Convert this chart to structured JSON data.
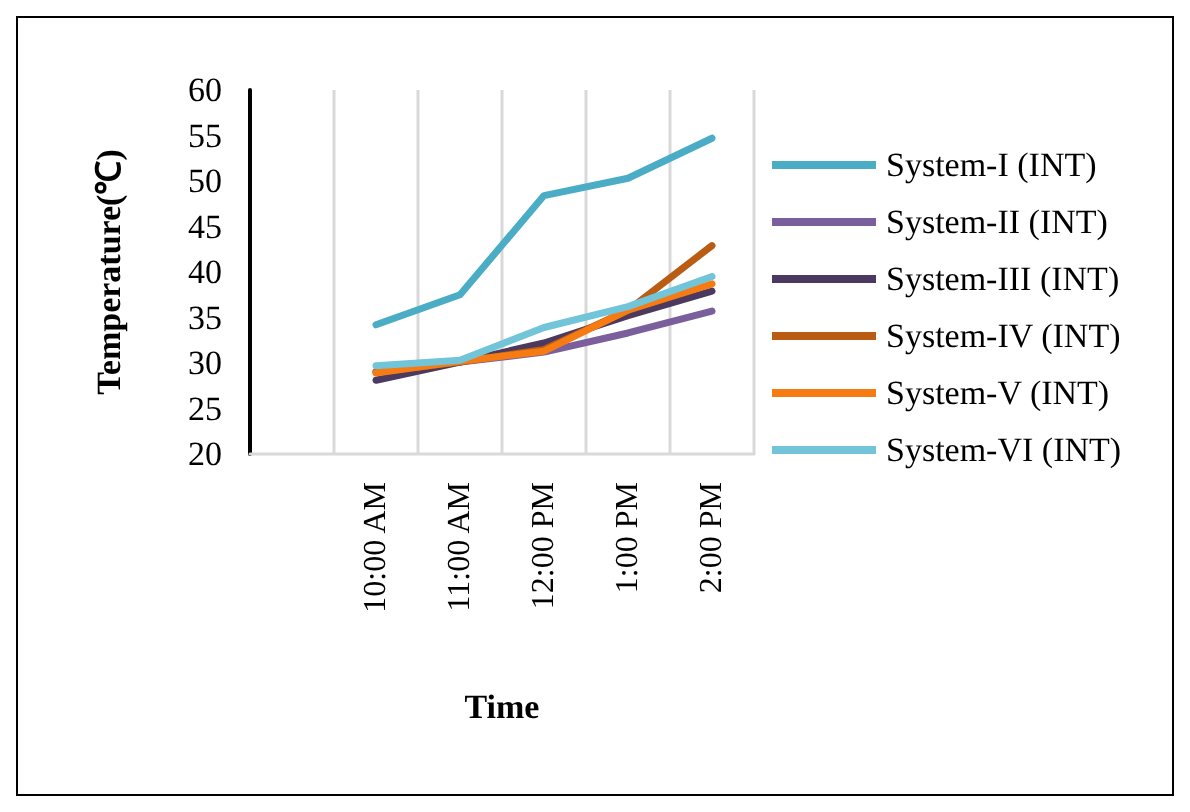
{
  "chart_data": {
    "type": "line",
    "xlabel": "Time",
    "ylabel": "Temperature(℃)",
    "categories": [
      null,
      "10:00 AM",
      "11:00 AM",
      "12:00 PM",
      "1:00 PM",
      "2:00 PM"
    ],
    "series": [
      {
        "name": "System-I (INT)",
        "color": "#4bacc6",
        "values": [
          null,
          34.2,
          37.5,
          48.4,
          50.3,
          54.7
        ]
      },
      {
        "name": "System-II (INT)",
        "color": "#7b5e9c",
        "values": [
          null,
          29.0,
          30.1,
          31.2,
          33.3,
          35.7
        ]
      },
      {
        "name": "System-III (INT)",
        "color": "#4b3960",
        "values": [
          null,
          28.1,
          30.1,
          32.2,
          35.2,
          37.9
        ]
      },
      {
        "name": "System-IV (INT)",
        "color": "#b95c14",
        "values": [
          null,
          29.0,
          30.1,
          31.5,
          35.8,
          42.9
        ]
      },
      {
        "name": "System-V (INT)",
        "color": "#f57b12",
        "values": [
          null,
          28.9,
          30.2,
          31.3,
          35.8,
          38.7
        ]
      },
      {
        "name": "System-VI (INT)",
        "color": "#72c4d9",
        "values": [
          null,
          29.7,
          30.3,
          33.9,
          36.2,
          39.5
        ]
      }
    ],
    "ylim": [
      20,
      60
    ],
    "yticks": [
      20,
      25,
      30,
      35,
      40,
      45,
      50,
      55,
      60
    ],
    "grid": "x",
    "legend": "right",
    "marker": "none",
    "line_style": "solid"
  }
}
